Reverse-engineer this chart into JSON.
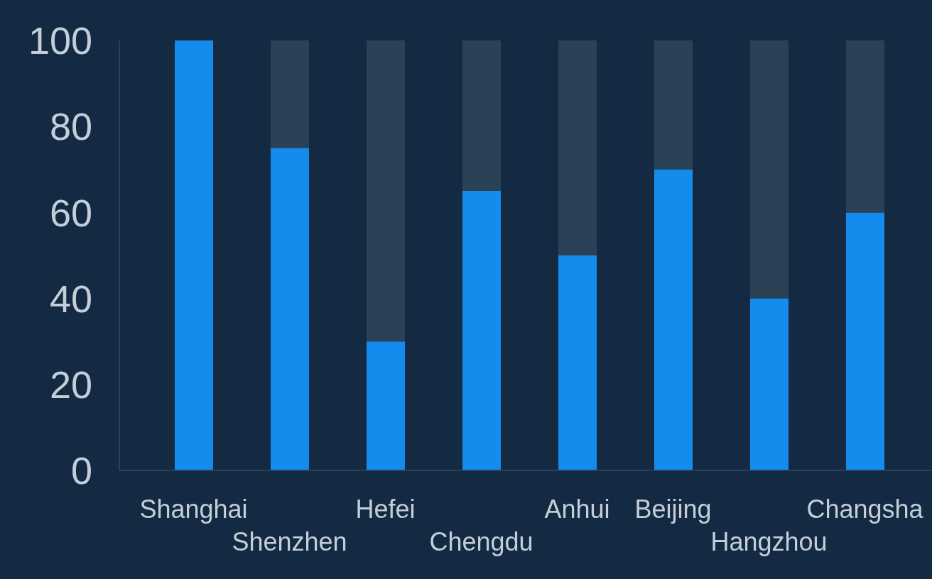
{
  "chart_data": {
    "type": "bar",
    "categories": [
      "Shanghai",
      "Shenzhen",
      "Hefei",
      "Chengdu",
      "Anhui",
      "Beijing",
      "Hangzhou",
      "Changsha"
    ],
    "series": [
      {
        "color": "#138cee",
        "values": [
          100,
          75,
          30,
          65,
          50,
          70,
          40,
          60
        ]
      },
      {
        "color": "#2b4256",
        "values": [
          0,
          25,
          70,
          35,
          50,
          30,
          60,
          40
        ]
      }
    ],
    "stacked": true,
    "ylim": [
      0,
      100
    ],
    "yticks": [
      0,
      20,
      40,
      60,
      80,
      100
    ]
  }
}
